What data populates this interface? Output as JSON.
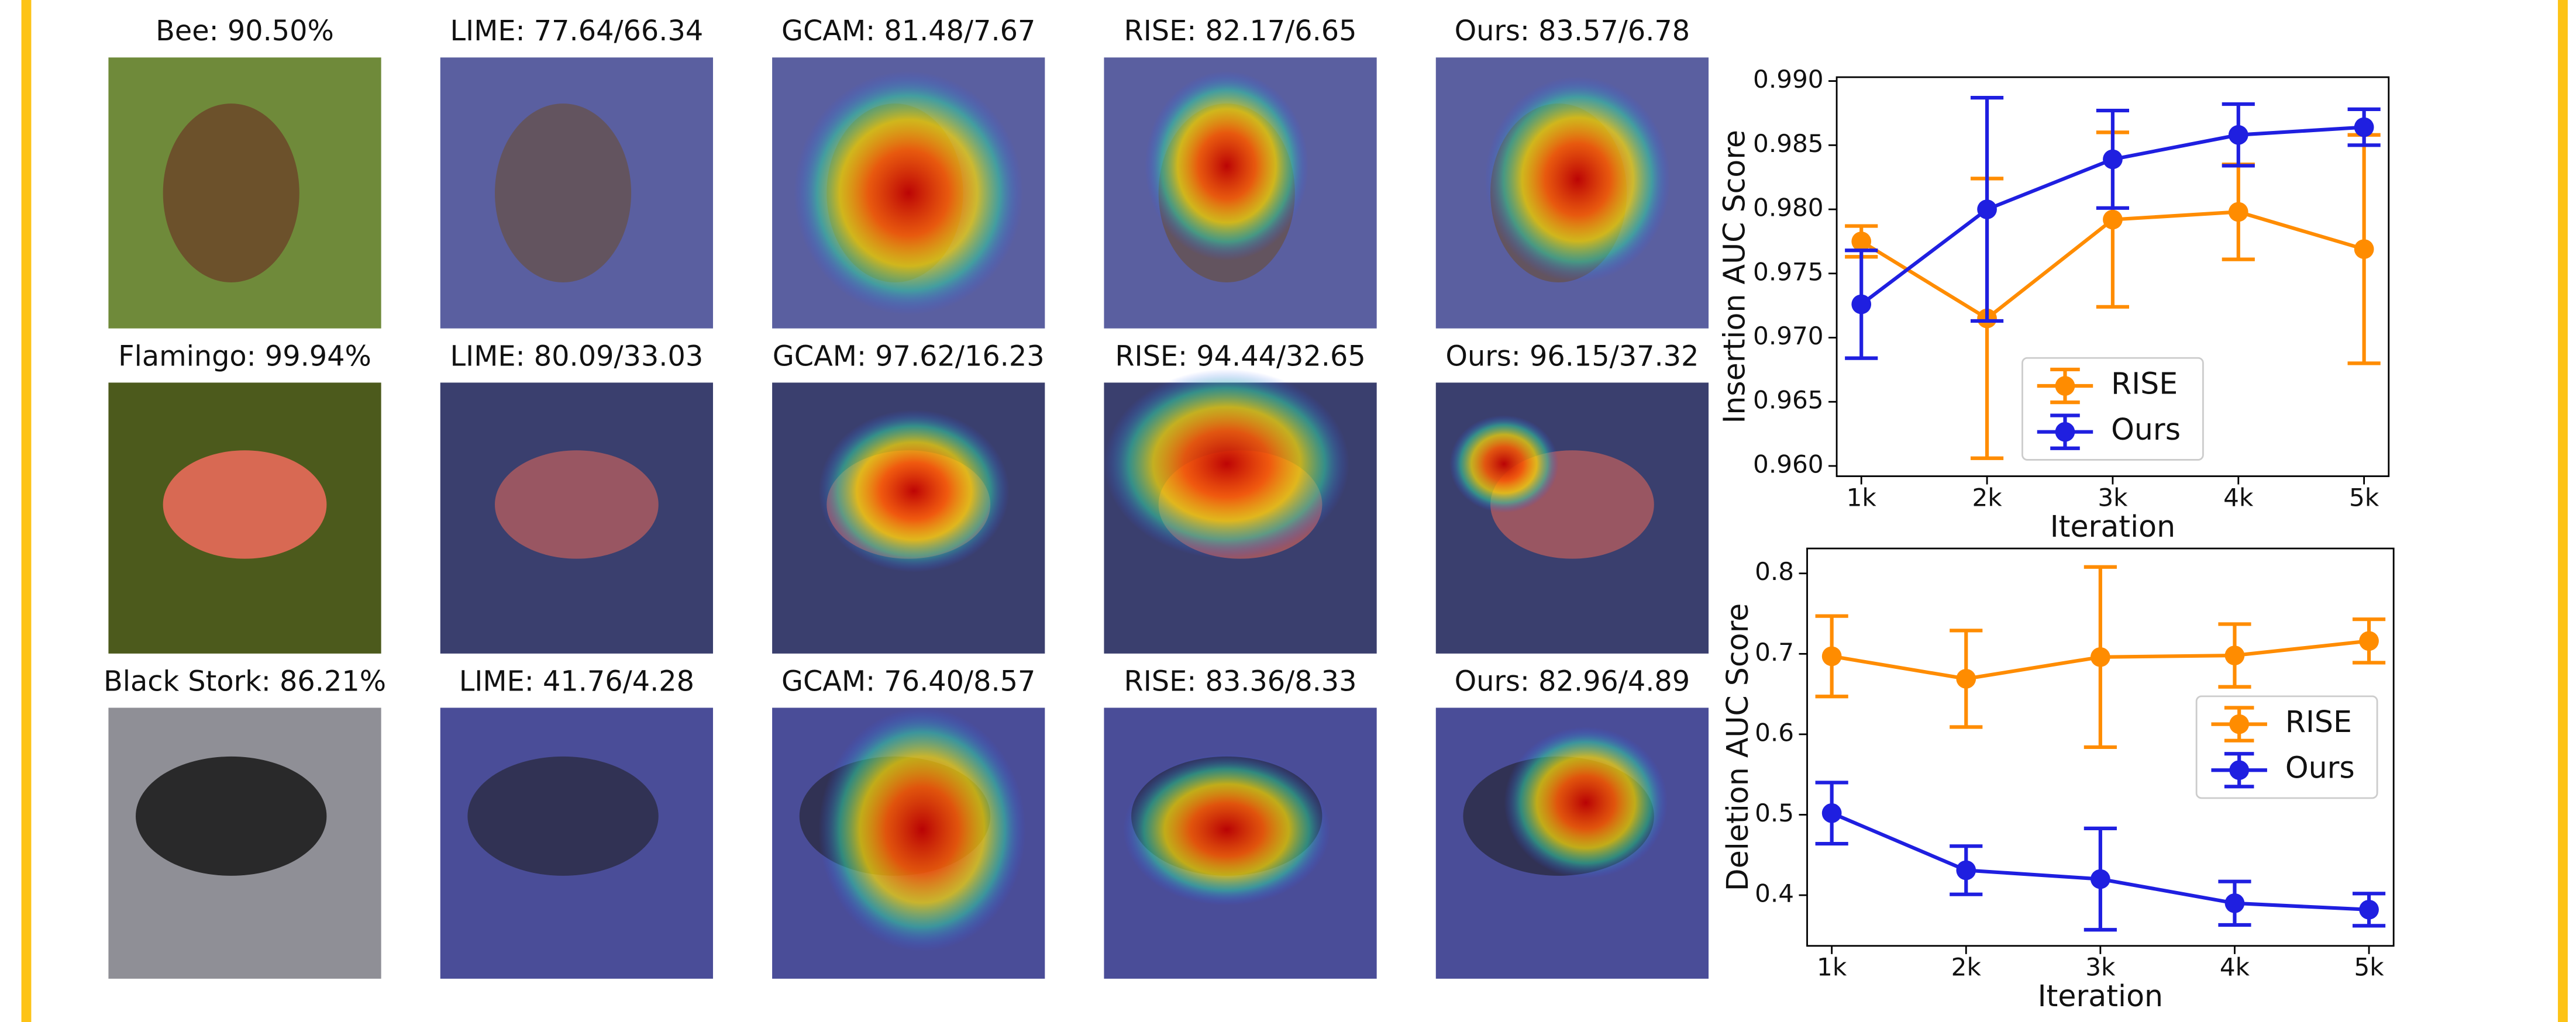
{
  "panels": {
    "rows": [
      [
        "Bee: 90.50%",
        "LIME: 77.64/66.34",
        "GCAM: 81.48/7.67",
        "RISE: 82.17/6.65",
        "Ours: 83.57/6.78"
      ],
      [
        "Flamingo: 99.94%",
        "LIME: 80.09/33.03",
        "GCAM: 97.62/16.23",
        "RISE: 94.44/32.65",
        "Ours: 96.15/37.32"
      ],
      [
        "Black Stork: 86.21%",
        "LIME: 41.76/4.28",
        "GCAM: 76.40/8.57",
        "RISE: 83.36/8.33",
        "Ours: 82.96/4.89"
      ]
    ]
  },
  "chart_data": [
    {
      "type": "errorbar",
      "xlabel": "Iteration",
      "ylabel": "Insertion AUC Score",
      "categories": [
        "1k",
        "2k",
        "3k",
        "4k",
        "5k"
      ],
      "ylim": [
        0.9592,
        0.9903
      ],
      "yticks": [
        {
          "value": 0.96,
          "label": "0.960"
        },
        0.965,
        {
          "value": 0.97,
          "label": "0.970"
        },
        0.975,
        {
          "value": 0.98,
          "label": "0.980"
        },
        0.985,
        {
          "value": 0.99,
          "label": "0.990"
        }
      ],
      "legend": "lower center",
      "series": [
        {
          "name": "RISE",
          "color": "#ff8c00",
          "values": [
            0.9775,
            0.9715,
            0.9792,
            0.9798,
            0.9769
          ],
          "errors": [
            0.0012,
            0.0109,
            0.0068,
            0.0037,
            0.0089
          ]
        },
        {
          "name": "Ours",
          "color": "#1f1fe0",
          "values": [
            0.9726,
            0.98,
            0.9839,
            0.9858,
            0.9864
          ],
          "errors": [
            0.0042,
            0.0087,
            0.0038,
            0.0024,
            0.0014
          ]
        }
      ]
    },
    {
      "type": "errorbar",
      "xlabel": "Iteration",
      "ylabel": "Deletion AUC Score",
      "categories": [
        "1k",
        "2k",
        "3k",
        "4k",
        "5k"
      ],
      "ylim": [
        0.337,
        0.831
      ],
      "yticks": [
        0.4,
        0.5,
        0.6,
        0.7,
        0.8
      ],
      "legend": "center right",
      "series": [
        {
          "name": "RISE",
          "color": "#ff8c00",
          "values": [
            0.697,
            0.669,
            0.696,
            0.698,
            0.716
          ],
          "errors": [
            0.05,
            0.06,
            0.112,
            0.039,
            0.027
          ]
        },
        {
          "name": "Ours",
          "color": "#1f1fe0",
          "values": [
            0.502,
            0.431,
            0.42,
            0.39,
            0.382
          ],
          "errors": [
            0.038,
            0.03,
            0.063,
            0.027,
            0.02
          ]
        }
      ]
    }
  ]
}
